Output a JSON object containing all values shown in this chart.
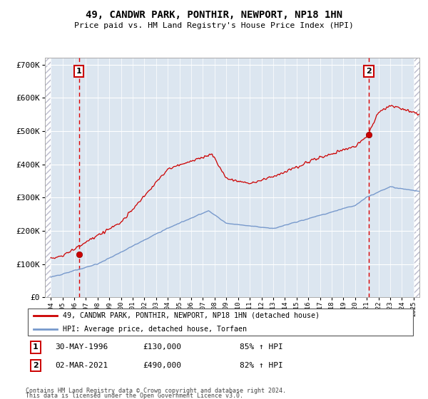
{
  "title": "49, CANDWR PARK, PONTHIR, NEWPORT, NP18 1HN",
  "subtitle": "Price paid vs. HM Land Registry's House Price Index (HPI)",
  "ylim": [
    0,
    720000
  ],
  "yticks": [
    0,
    100000,
    200000,
    300000,
    400000,
    500000,
    600000,
    700000
  ],
  "ytick_labels": [
    "£0",
    "£100K",
    "£200K",
    "£300K",
    "£400K",
    "£500K",
    "£600K",
    "£700K"
  ],
  "xlim_start": 1993.5,
  "xlim_end": 2025.5,
  "sale1_year": 1996.41,
  "sale1_price": 130000,
  "sale1_label": "1",
  "sale1_date": "30-MAY-1996",
  "sale1_pct": "85%",
  "sale2_year": 2021.17,
  "sale2_price": 490000,
  "sale2_label": "2",
  "sale2_date": "02-MAR-2021",
  "sale2_pct": "82%",
  "legend_line1": "49, CANDWR PARK, PONTHIR, NEWPORT, NP18 1HN (detached house)",
  "legend_line2": "HPI: Average price, detached house, Torfaen",
  "footnote1": "Contains HM Land Registry data © Crown copyright and database right 2024.",
  "footnote2": "This data is licensed under the Open Government Licence v3.0.",
  "plot_bg": "#dce6f0",
  "red_line_color": "#cc0000",
  "blue_line_color": "#7799cc",
  "vline_color": "#dd0000",
  "box_color": "#cc0000",
  "hatch_color": "#bbbbcc"
}
